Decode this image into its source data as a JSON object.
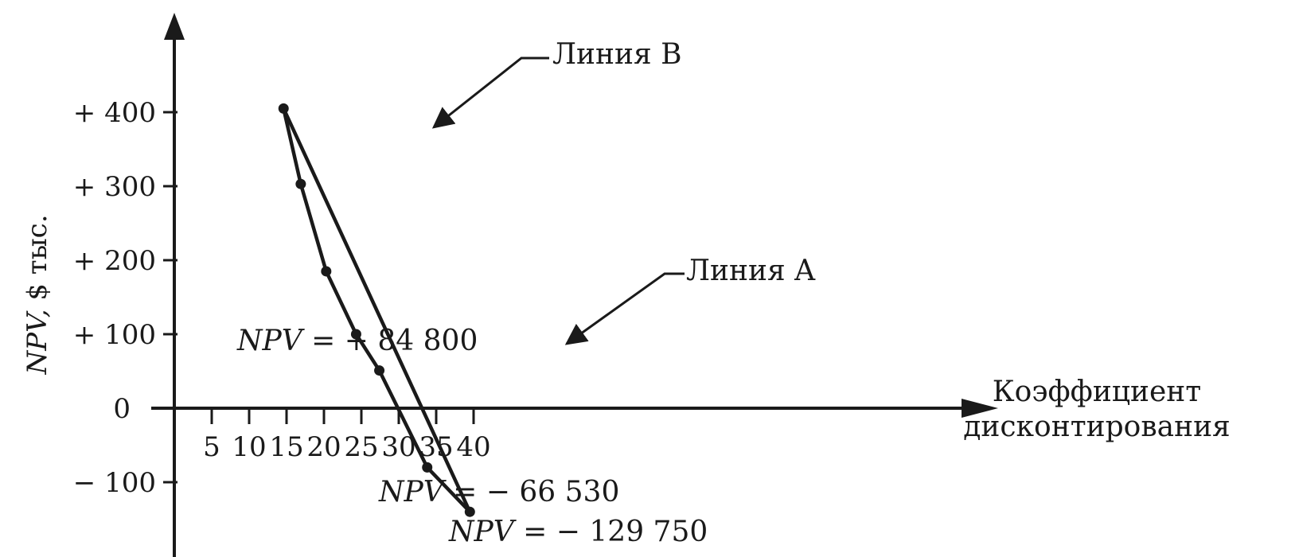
{
  "chart_data": {
    "type": "line",
    "xlabel": [
      "Коэффициент",
      "дисконтирования"
    ],
    "ylabel": {
      "italic": "NPV,",
      "rest": " $ тыс."
    },
    "x_ticks": [
      5,
      10,
      15,
      20,
      25,
      30,
      35,
      40
    ],
    "x_tick_labels": [
      "5",
      "10",
      "15",
      "20",
      "25",
      "30",
      "35",
      "40"
    ],
    "y_ticks": [
      400,
      300,
      200,
      100,
      0,
      -100
    ],
    "y_tick_labels": [
      "+ 400",
      "+ 300",
      "+ 200",
      "+ 100",
      "0",
      "− 100"
    ],
    "xlim": [
      0,
      53
    ],
    "ylim": [
      -190,
      505
    ],
    "grid": false,
    "series": [
      {
        "name": "Линия A",
        "x": [
          14.6,
          16.9,
          20.3,
          24.3,
          27.4,
          33.8,
          39.5
        ],
        "y": [
          405,
          303,
          185,
          100,
          51,
          -80,
          -140
        ],
        "markers": true
      },
      {
        "name": "Линия B",
        "x": [
          14.6,
          39.5
        ],
        "y": [
          405,
          -140
        ],
        "markers": false
      }
    ],
    "annotations": [
      {
        "id": "line-b-label",
        "text": "Линия B",
        "target": [
          16.5,
          364
        ]
      },
      {
        "id": "line-a-label",
        "text": "Линия A",
        "target": [
          26.0,
          80
        ]
      },
      {
        "id": "npv-pos",
        "italic": "NPV",
        "rest": " = + 84 800"
      },
      {
        "id": "npv-neg1",
        "italic": "NPV",
        "rest": " = − 66 530"
      },
      {
        "id": "npv-neg2",
        "italic": "NPV",
        "rest": " = − 129 750"
      }
    ]
  }
}
